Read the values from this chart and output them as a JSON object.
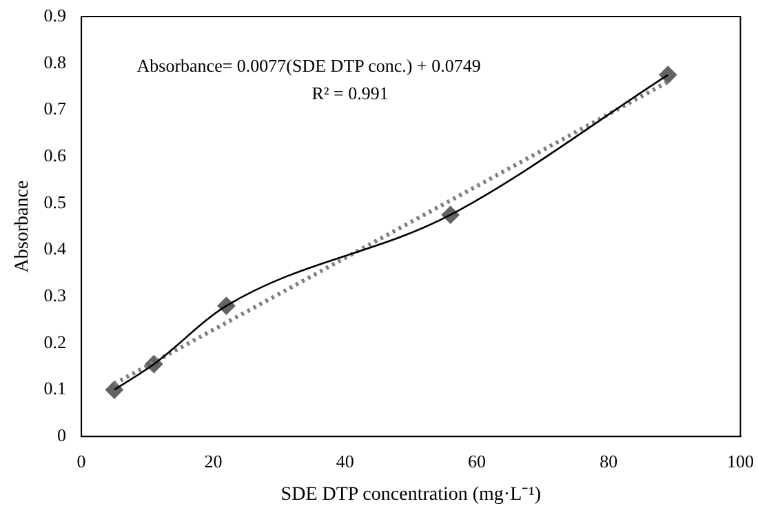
{
  "chart_data": {
    "type": "scatter",
    "xlabel": "SDE DTP concentration (mg·L⁻¹)",
    "ylabel": "Absorbance",
    "xlim": [
      0,
      100
    ],
    "xticks": [
      0,
      20,
      40,
      60,
      80,
      100
    ],
    "ylim": [
      0,
      0.9
    ],
    "yticks": [
      0,
      0.1,
      0.2,
      0.3,
      0.4,
      0.5,
      0.6,
      0.7,
      0.8,
      0.9
    ],
    "grid": false,
    "legend": false,
    "annotations": [
      "Absorbance= 0.0077(SDE DTP conc.) + 0.0749",
      "R² = 0.991"
    ],
    "series": [
      {
        "type": "line",
        "x": [
          5,
          11,
          22,
          56,
          89
        ],
        "values": [
          0.1,
          0.155,
          0.28,
          0.475,
          0.775
        ],
        "color": "#000000",
        "marker": "none",
        "line_style": "solid"
      },
      {
        "type": "line",
        "x": [
          5,
          89
        ],
        "values": [
          0.113,
          0.76
        ],
        "color": "#7f7f7f",
        "marker": "none",
        "line_style": "dotted"
      },
      {
        "type": "scatter",
        "x": [
          5,
          11,
          22,
          56,
          89
        ],
        "values": [
          0.1,
          0.155,
          0.28,
          0.475,
          0.775
        ],
        "color": "#636363",
        "marker": "diamond"
      }
    ]
  }
}
